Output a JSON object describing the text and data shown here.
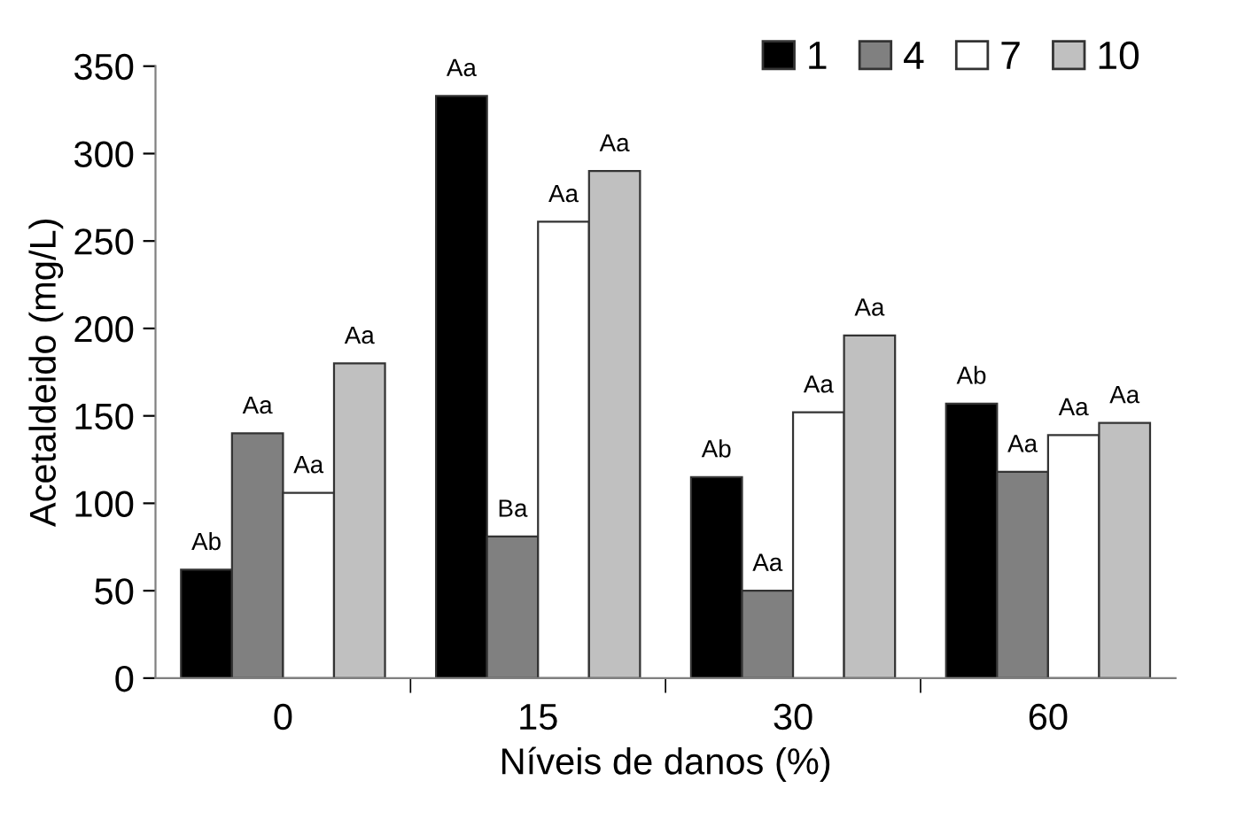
{
  "chart_data": {
    "type": "bar",
    "xlabel": "Níveis de danos (%)",
    "ylabel": "Acetaldeido (mg/L)",
    "categories": [
      "0",
      "15",
      "30",
      "60"
    ],
    "series": [
      {
        "name": "1",
        "color": "#000000",
        "values": [
          62,
          333,
          115,
          157
        ],
        "value_labels": [
          "Ab",
          "Aa",
          "Ab",
          "Ab"
        ]
      },
      {
        "name": "4",
        "color": "#808080",
        "values": [
          140,
          81,
          50,
          118
        ],
        "value_labels": [
          "Aa",
          "Ba",
          "Aa",
          "Aa"
        ]
      },
      {
        "name": "7",
        "color": "#ffffff",
        "values": [
          106,
          261,
          152,
          139
        ],
        "value_labels": [
          "Aa",
          "Aa",
          "Aa",
          "Aa"
        ]
      },
      {
        "name": "10",
        "color": "#c0c0c0",
        "values": [
          180,
          290,
          196,
          146
        ],
        "value_labels": [
          "Aa",
          "Aa",
          "Aa",
          "Aa"
        ]
      }
    ],
    "ylim": [
      0,
      350
    ],
    "yticks": [
      0,
      50,
      100,
      150,
      200,
      250,
      300,
      350
    ],
    "grid": false,
    "legend": "top right"
  }
}
